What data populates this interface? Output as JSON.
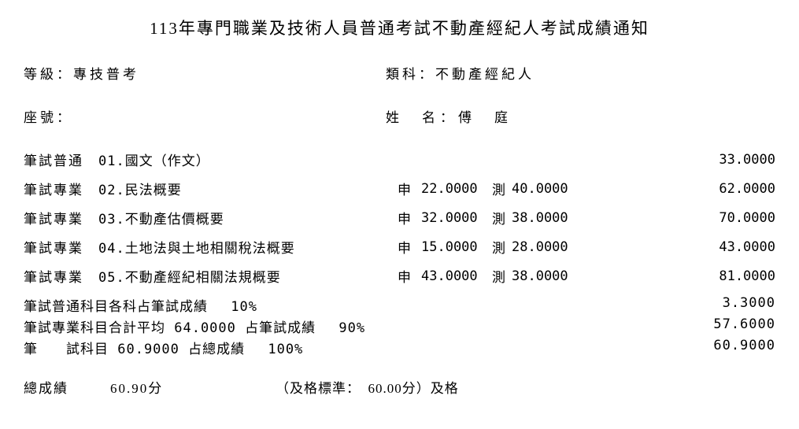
{
  "title": "113年專門職業及技術人員普通考試不動產經紀人考試成績通知",
  "level_label": "等級：",
  "level_value": "專技普考",
  "category_label": "類科：",
  "category_value": "不動產經紀人",
  "seat_label": "座號：",
  "name_label": "姓　名：",
  "name_value": "傅　庭",
  "subjects": [
    {
      "type": "筆試普通",
      "code": "01.國文（作文）",
      "shen_label": "",
      "shen_score": "",
      "ce_label": "",
      "ce_score": "",
      "total": "33.0000"
    },
    {
      "type": "筆試專業",
      "code": "02.民法概要",
      "shen_label": "申",
      "shen_score": "22.0000",
      "ce_label": "測",
      "ce_score": "40.0000",
      "total": "62.0000"
    },
    {
      "type": "筆試專業",
      "code": "03.不動產估價概要",
      "shen_label": "申",
      "shen_score": "32.0000",
      "ce_label": "測",
      "ce_score": "38.0000",
      "total": "70.0000"
    },
    {
      "type": "筆試專業",
      "code": "04.土地法與土地相關稅法概要",
      "shen_label": "申",
      "shen_score": "15.0000",
      "ce_label": "測",
      "ce_score": "28.0000",
      "total": "43.0000"
    },
    {
      "type": "筆試專業",
      "code": "05.不動產經紀相關法規概要",
      "shen_label": "申",
      "shen_score": "43.0000",
      "ce_label": "測",
      "ce_score": "38.0000",
      "total": "81.0000"
    }
  ],
  "summary1_text": "筆試普通科目各科占筆試成績　 10%",
  "summary1_value": "3.3000",
  "summary2_text": "筆試專業科目合計平均 64.0000 占筆試成績　 90%",
  "summary2_value": "57.6000",
  "summary3_text": "筆　　試科目 60.9000 占總成績　 100%",
  "summary3_value": "60.9000",
  "final_label": "總成績",
  "final_score": "60.90分",
  "final_standard": "（及格標準：　60.00分）及格"
}
